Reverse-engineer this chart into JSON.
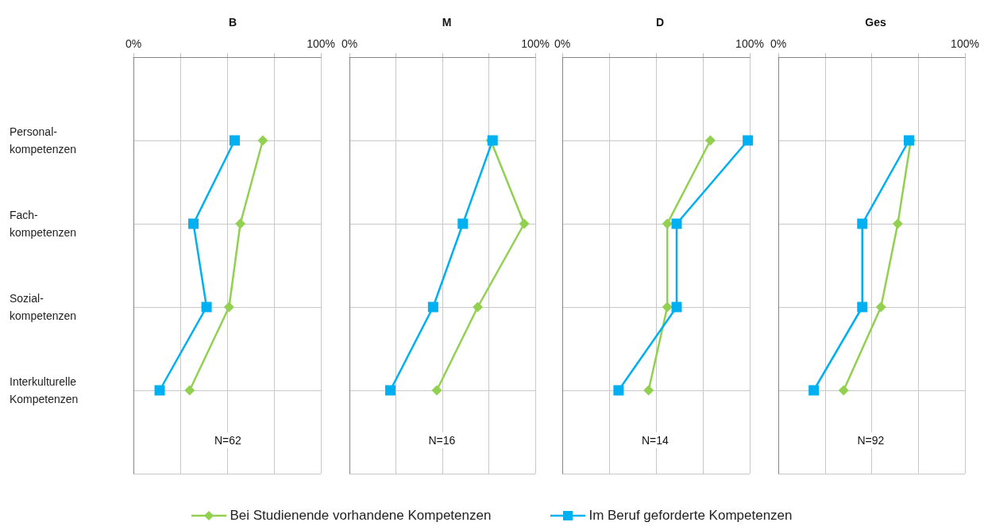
{
  "chart_data": [
    {
      "type": "line",
      "title": "B",
      "orientation": "horizontal",
      "categories": [
        "Personal-kompetenzen",
        "Fach-kompetenzen",
        "Sozial-kompetenzen",
        "Interkulturelle Kompetenzen"
      ],
      "series": [
        {
          "name": "Bei Studienende vorhandene Kompetenzen",
          "color": "#92d050",
          "marker": "diamond",
          "values": [
            69,
            57,
            51,
            30
          ]
        },
        {
          "name": "Im Beruf geforderte Kompetenzen",
          "color": "#00b0f0",
          "marker": "square",
          "values": [
            54,
            32,
            39,
            14
          ]
        }
      ],
      "xlim": [
        0,
        100
      ],
      "xticks": [
        {
          "value": 0,
          "label": "0%"
        },
        {
          "value": 25,
          "label": null
        },
        {
          "value": 50,
          "label": null
        },
        {
          "value": 75,
          "label": null
        },
        {
          "value": 100,
          "label": "100%"
        }
      ],
      "grid": true,
      "legend": "bottom",
      "line_style": "solid",
      "annotations": [
        "N=62"
      ]
    },
    {
      "type": "line",
      "title": "M",
      "orientation": "horizontal",
      "categories": [
        null,
        null,
        null,
        null
      ],
      "series": [
        {
          "color": "#92d050",
          "marker": "diamond",
          "values": [
            76,
            94,
            69,
            47
          ]
        },
        {
          "color": "#00b0f0",
          "marker": "square",
          "values": [
            77,
            61,
            45,
            22
          ]
        }
      ],
      "xlim": [
        0,
        100
      ],
      "xticks": [
        {
          "value": 0,
          "label": "0%"
        },
        {
          "value": 25,
          "label": null
        },
        {
          "value": 50,
          "label": null
        },
        {
          "value": 75,
          "label": null
        },
        {
          "value": 100,
          "label": "100%"
        }
      ],
      "grid": true,
      "tick_labels": "x",
      "line_style": "solid",
      "annotations": [
        "N=16"
      ]
    },
    {
      "type": "line",
      "title": "D",
      "orientation": "horizontal",
      "categories": [
        null,
        null,
        null,
        null
      ],
      "series": [
        {
          "color": "#92d050",
          "marker": "diamond",
          "values": [
            79,
            56,
            56,
            46
          ]
        },
        {
          "color": "#00b0f0",
          "marker": "square",
          "values": [
            99,
            61,
            61,
            30
          ]
        }
      ],
      "xlim": [
        0,
        100
      ],
      "xticks": [
        {
          "value": 0,
          "label": "0%"
        },
        {
          "value": 25,
          "label": null
        },
        {
          "value": 50,
          "label": null
        },
        {
          "value": 75,
          "label": null
        },
        {
          "value": 100,
          "label": "100%"
        }
      ],
      "grid": true,
      "tick_labels": "x",
      "line_style": "solid",
      "annotations": [
        "N=14"
      ]
    },
    {
      "type": "line",
      "title": "Ges",
      "orientation": "horizontal",
      "categories": [
        null,
        null,
        null,
        null
      ],
      "series": [
        {
          "color": "#92d050",
          "marker": "diamond",
          "values": [
            71,
            64,
            55,
            35
          ]
        },
        {
          "color": "#00b0f0",
          "marker": "square",
          "values": [
            70,
            45,
            45,
            19
          ]
        }
      ],
      "xlim": [
        0,
        100
      ],
      "xticks": [
        {
          "value": 0,
          "label": "0%"
        },
        {
          "value": 25,
          "label": null
        },
        {
          "value": 50,
          "label": null
        },
        {
          "value": 75,
          "label": null
        },
        {
          "value": 100,
          "label": "100%"
        }
      ],
      "grid": true,
      "tick_labels": "x",
      "line_style": "solid",
      "annotations": [
        "N=92"
      ]
    }
  ]
}
